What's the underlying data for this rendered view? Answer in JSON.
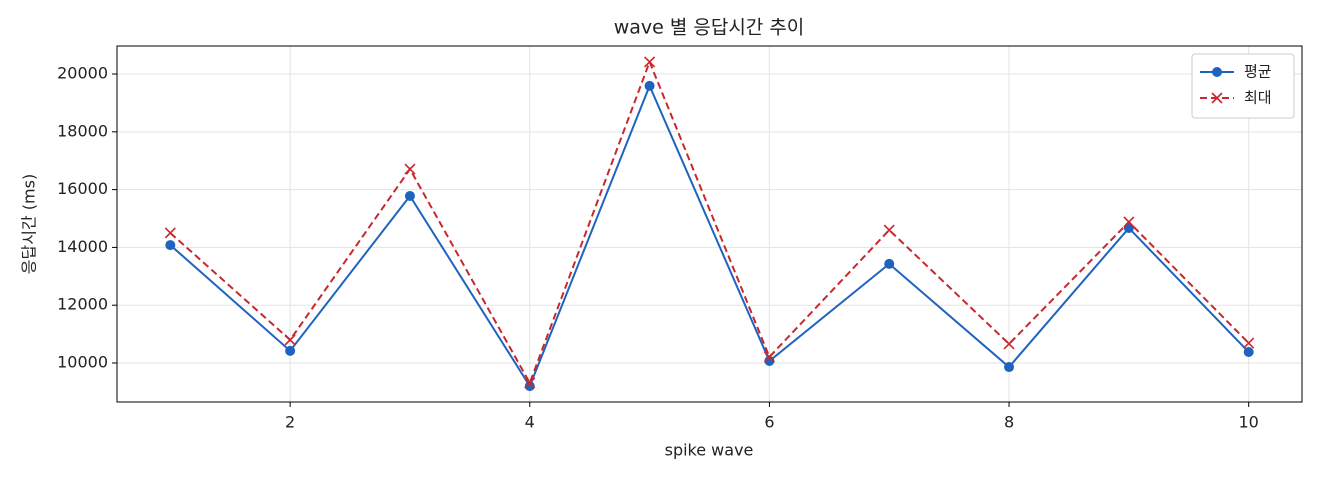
{
  "chart_data": {
    "type": "line",
    "title": "wave 별 응답시간 추이",
    "xlabel": "spike wave",
    "ylabel": "응답시간 (ms)",
    "x": [
      1,
      2,
      3,
      4,
      5,
      6,
      7,
      8,
      9,
      10
    ],
    "series": [
      {
        "name": "평균",
        "color": "#1f63c0",
        "marker": "circle",
        "linestyle": "solid",
        "values": [
          14080,
          10420,
          15780,
          9200,
          19590,
          10070,
          13430,
          9860,
          14670,
          10380
        ]
      },
      {
        "name": "최대",
        "color": "#c8282d",
        "marker": "x",
        "linestyle": "dashed",
        "values": [
          14500,
          10800,
          16710,
          9310,
          20420,
          10210,
          14600,
          10660,
          14880,
          10690
        ]
      }
    ],
    "xlim": [
      0.555,
      10.445
    ],
    "ylim": [
      8650,
      20970
    ],
    "xticks": [
      2,
      4,
      6,
      8,
      10
    ],
    "yticks": [
      10000,
      12000,
      14000,
      16000,
      18000,
      20000
    ],
    "grid": true,
    "legend": "upper right"
  }
}
